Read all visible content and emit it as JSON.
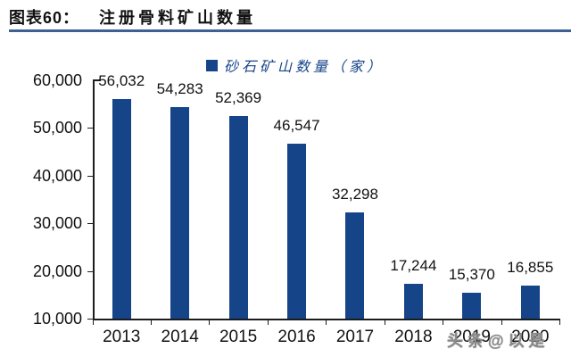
{
  "header": {
    "tag": "图表60：",
    "title": "注册骨料矿山数量"
  },
  "chart_data": {
    "type": "bar",
    "title": "注册骨料矿山数量",
    "legend": [
      "砂石矿山数量（家）"
    ],
    "legend_position": "top-center",
    "categories": [
      "2013",
      "2014",
      "2015",
      "2016",
      "2017",
      "2018",
      "2019",
      "2020"
    ],
    "values": [
      56032,
      54283,
      52369,
      46547,
      32298,
      17244,
      15370,
      16855
    ],
    "value_labels": [
      "56,032",
      "54,283",
      "52,369",
      "46,547",
      "32,298",
      "17,244",
      "15,370",
      "16,855"
    ],
    "xlabel": "",
    "ylabel": "",
    "ylim": [
      10000,
      60000
    ],
    "yticks": [
      10000,
      20000,
      30000,
      40000,
      50000,
      60000
    ],
    "ytick_labels": [
      "10,000",
      "20,000",
      "30,000",
      "40,000",
      "50,000",
      "60,000"
    ],
    "grid": false,
    "bar_color": "#164489",
    "axis_color": "#1c1c1c",
    "label_color": "#111111"
  },
  "watermark": {
    "text": "头条@以是"
  },
  "colors": {
    "accent_navy": "#164489",
    "title_underline": "#3e6093",
    "watermark_gray": "#8a8a8a",
    "background": "#ffffff"
  }
}
